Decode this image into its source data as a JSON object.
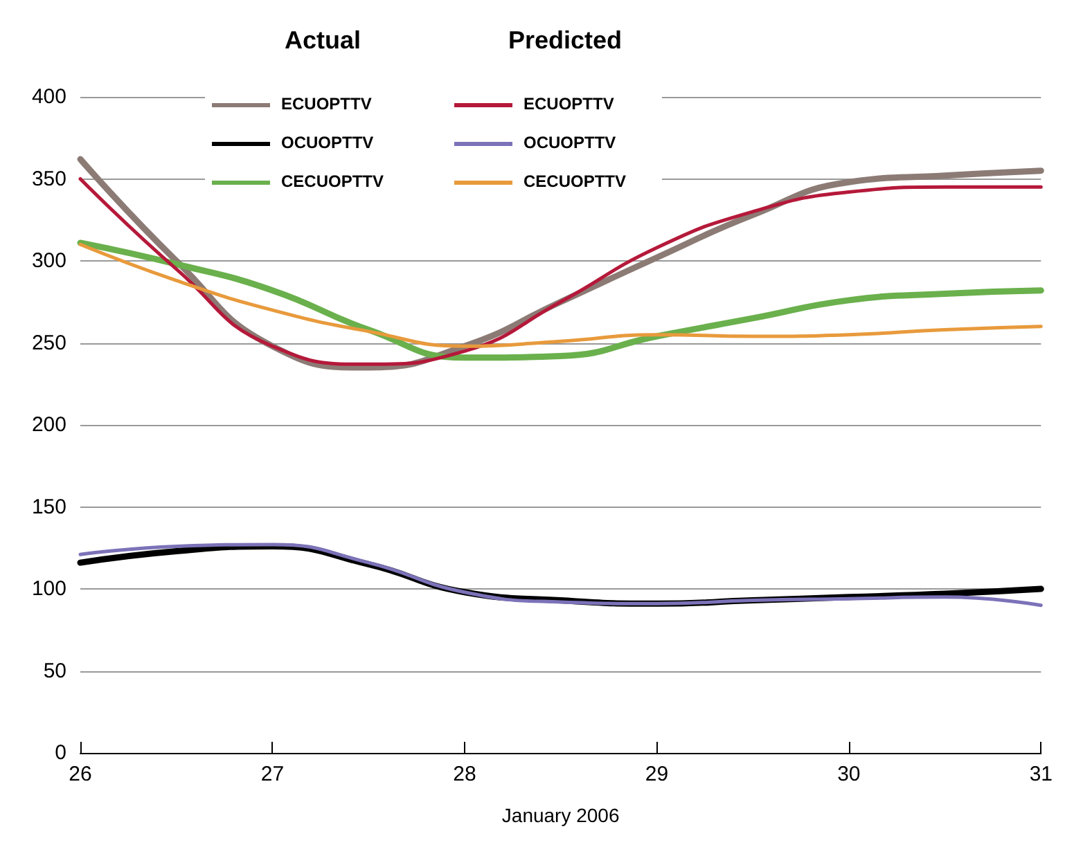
{
  "chart_data": {
    "type": "line",
    "xlabel": "January 2006",
    "x": [
      26,
      26.5,
      27,
      27.5,
      28,
      28.5,
      29,
      29.5,
      30,
      30.5,
      31
    ],
    "series": [
      {
        "name": "ECUOPTTV",
        "color": "#8c7b75",
        "values": [
          362,
          300,
          248,
          235,
          248,
          275,
          302,
          328,
          348,
          352,
          355
        ]
      },
      {
        "name": "OCUOPTTV",
        "color": "#000000",
        "values": [
          116,
          123,
          126,
          115,
          98,
          93,
          91,
          93,
          95,
          97,
          100
        ]
      },
      {
        "name": "CECUOPTTV",
        "color": "#6ab04c",
        "values": [
          311,
          298,
          282,
          258,
          241,
          242,
          254,
          265,
          276,
          280,
          282
        ]
      },
      {
        "name": "ECUOPTTV",
        "color": "#b5193a",
        "values": [
          350,
          295,
          248,
          237,
          245,
          275,
          308,
          330,
          342,
          345,
          345
        ]
      },
      {
        "name": "OCUOPTTV",
        "color": "#7b72b8",
        "values": [
          121,
          126,
          127,
          116,
          98,
          92,
          91,
          93,
          94,
          95,
          90
        ]
      },
      {
        "name": "CECUOPTTV",
        "color": "#e89a3c",
        "values": [
          310,
          288,
          270,
          257,
          248,
          251,
          255,
          254,
          255,
          258,
          260
        ]
      }
    ],
    "annotations": [
      "Actual",
      "Predicted"
    ],
    "xlim": [
      26,
      31
    ],
    "xticks": [
      26,
      27,
      28,
      29,
      30,
      31
    ],
    "ylim": [
      0,
      400
    ],
    "yticks": [
      0,
      50,
      100,
      150,
      200,
      250,
      300,
      350,
      400
    ],
    "grid": "y",
    "legend": "top left",
    "marker": "none",
    "line_style": "solid"
  }
}
